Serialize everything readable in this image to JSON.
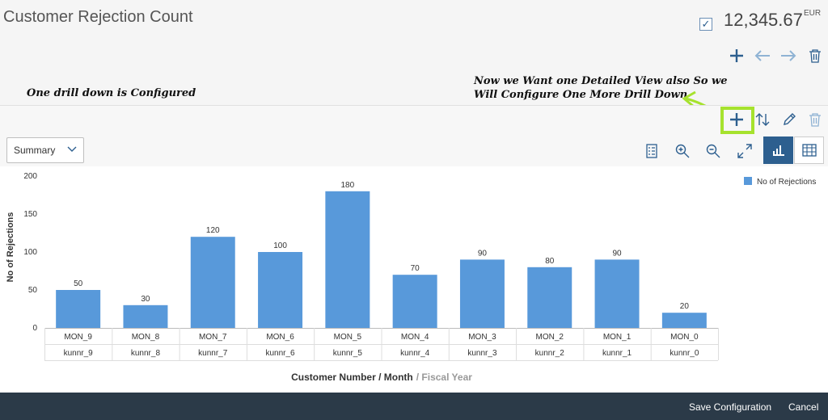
{
  "header": {
    "title": "Customer Rejection Count",
    "kpi_value": "12,345.67",
    "kpi_unit": "EUR"
  },
  "annotations": {
    "left_note": "One drill down is Configured",
    "right_note": "Now we Want one Detailed View also So we Will Configure One More Drill Down",
    "arrow_color": "#a6e22e"
  },
  "drilldown": {
    "selected": "Summary"
  },
  "icons": {
    "top_toolbar": [
      "plus-icon",
      "arrow-left-icon",
      "arrow-right-icon",
      "trash-icon"
    ],
    "drill_toolbar": [
      "plus-icon",
      "sort-icon",
      "pencil-icon",
      "trash-icon"
    ],
    "chart_toolbar": [
      "legend-icon",
      "zoom-in-icon",
      "zoom-out-icon",
      "fullscreen-icon",
      "chart-view-icon",
      "table-view-icon"
    ]
  },
  "colors": {
    "bar": "#5899da",
    "accent": "#2d5f8f",
    "footer": "#2b3a48"
  },
  "footer": {
    "save_label": "Save Configuration",
    "cancel_label": "Cancel"
  },
  "chart_data": {
    "type": "bar",
    "categories": [
      "MON_9",
      "MON_8",
      "MON_7",
      "MON_6",
      "MON_5",
      "MON_4",
      "MON_3",
      "MON_2",
      "MON_1",
      "MON_0"
    ],
    "sub_categories": [
      "kunnr_9",
      "kunnr_8",
      "kunnr_7",
      "kunnr_6",
      "kunnr_5",
      "kunnr_4",
      "kunnr_3",
      "kunnr_2",
      "kunnr_1",
      "kunnr_0"
    ],
    "series": [
      {
        "name": "No of Rejections",
        "values": [
          50,
          30,
          120,
          100,
          180,
          70,
          90,
          80,
          90,
          20
        ]
      }
    ],
    "ylabel": "No of Rejections",
    "xlabel": "Customer Number / Month",
    "xlabel_secondary": "/ Fiscal Year",
    "ylim": [
      0,
      200
    ],
    "yticks": [
      0,
      50,
      100,
      150,
      200
    ],
    "legend_position": "top-right",
    "grid": false
  }
}
